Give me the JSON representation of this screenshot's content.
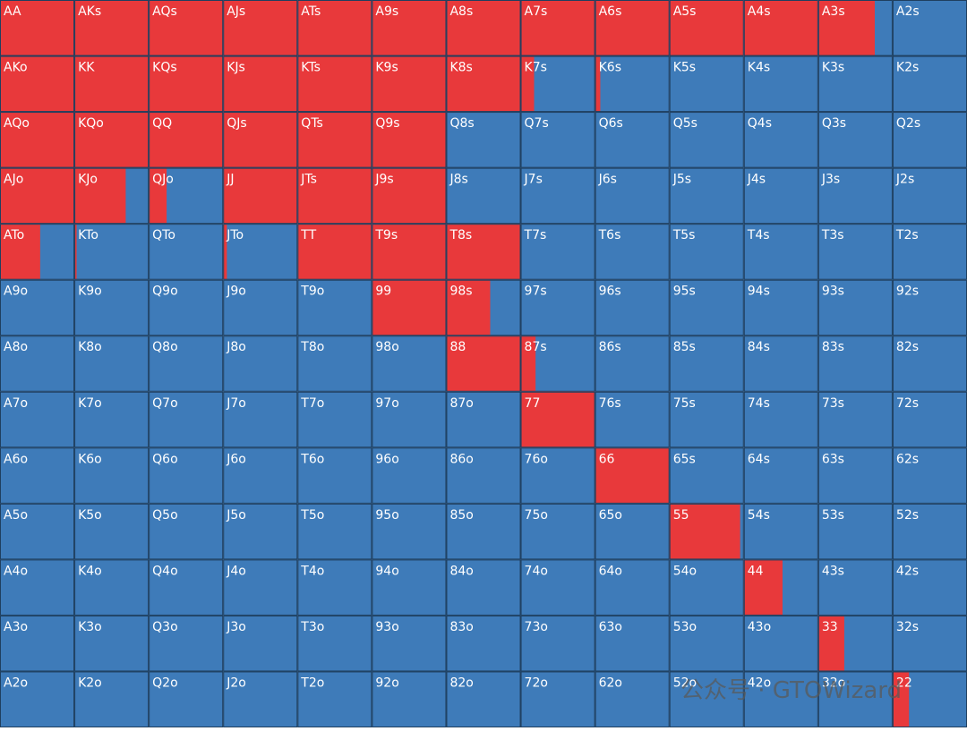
{
  "labels": [
    [
      "AA",
      "AKs",
      "AQs",
      "AJs",
      "ATs",
      "A9s",
      "A8s",
      "A7s",
      "A6s",
      "A5s",
      "A4s",
      "A3s",
      "A2s"
    ],
    [
      "AKo",
      "KK",
      "KQs",
      "KJs",
      "KTs",
      "K9s",
      "K8s",
      "K7s",
      "K6s",
      "K5s",
      "K4s",
      "K3s",
      "K2s"
    ],
    [
      "AQo",
      "KQo",
      "QQ",
      "QJs",
      "QTs",
      "Q9s",
      "Q8s",
      "Q7s",
      "Q6s",
      "Q5s",
      "Q4s",
      "Q3s",
      "Q2s"
    ],
    [
      "AJo",
      "KJo",
      "QJo",
      "JJ",
      "JTs",
      "J9s",
      "J8s",
      "J7s",
      "J6s",
      "J5s",
      "J4s",
      "J3s",
      "J2s"
    ],
    [
      "ATo",
      "KTo",
      "QTo",
      "JTo",
      "TT",
      "T9s",
      "T8s",
      "T7s",
      "T6s",
      "T5s",
      "T4s",
      "T3s",
      "T2s"
    ],
    [
      "A9o",
      "K9o",
      "Q9o",
      "J9o",
      "T9o",
      "99",
      "98s",
      "97s",
      "96s",
      "95s",
      "94s",
      "93s",
      "92s"
    ],
    [
      "A8o",
      "K8o",
      "Q8o",
      "J8o",
      "T8o",
      "98o",
      "88",
      "87s",
      "86s",
      "85s",
      "84s",
      "83s",
      "82s"
    ],
    [
      "A7o",
      "K7o",
      "Q7o",
      "J7o",
      "T7o",
      "97o",
      "87o",
      "77",
      "76s",
      "75s",
      "74s",
      "73s",
      "72s"
    ],
    [
      "A6o",
      "K6o",
      "Q6o",
      "J6o",
      "T6o",
      "96o",
      "86o",
      "76o",
      "66",
      "65s",
      "64s",
      "63s",
      "62s"
    ],
    [
      "A5o",
      "K5o",
      "Q5o",
      "J5o",
      "T5o",
      "95o",
      "85o",
      "75o",
      "65o",
      "55",
      "54s",
      "53s",
      "52s"
    ],
    [
      "A4o",
      "K4o",
      "Q4o",
      "J4o",
      "T4o",
      "94o",
      "84o",
      "74o",
      "64o",
      "54o",
      "44",
      "43s",
      "42s"
    ],
    [
      "A3o",
      "K3o",
      "Q3o",
      "J3o",
      "T3o",
      "93o",
      "83o",
      "73o",
      "63o",
      "53o",
      "43o",
      "33",
      "32s"
    ],
    [
      "A2o",
      "K2o",
      "Q2o",
      "J2o",
      "T2o",
      "92o",
      "82o",
      "72o",
      "62o",
      "52o",
      "42o",
      "32o",
      "22"
    ]
  ],
  "raise": [
    [
      100,
      100,
      100,
      100,
      100,
      100,
      100,
      100,
      100,
      100,
      100,
      76,
      0
    ],
    [
      100,
      100,
      100,
      100,
      100,
      100,
      100,
      18,
      7,
      0,
      0,
      0,
      0
    ],
    [
      100,
      100,
      100,
      100,
      100,
      100,
      0,
      0,
      0,
      0,
      0,
      0,
      0
    ],
    [
      100,
      69,
      24,
      100,
      100,
      100,
      0,
      0,
      0,
      0,
      0,
      0,
      0
    ],
    [
      54,
      3,
      0,
      5,
      100,
      100,
      100,
      0,
      0,
      0,
      0,
      0,
      0
    ],
    [
      0,
      0,
      0,
      0,
      0,
      100,
      59,
      0,
      0,
      0,
      0,
      0,
      0
    ],
    [
      0,
      0,
      0,
      0,
      0,
      0,
      100,
      20,
      0,
      0,
      0,
      0,
      0
    ],
    [
      0,
      0,
      0,
      0,
      0,
      0,
      0,
      100,
      0,
      0,
      0,
      0,
      0
    ],
    [
      0,
      0,
      0,
      0,
      0,
      0,
      0,
      0,
      100,
      0,
      0,
      0,
      0
    ],
    [
      0,
      0,
      0,
      0,
      0,
      0,
      0,
      0,
      0,
      95,
      0,
      0,
      0
    ],
    [
      0,
      0,
      0,
      0,
      0,
      0,
      0,
      0,
      0,
      0,
      52,
      0,
      0
    ],
    [
      0,
      0,
      0,
      0,
      0,
      0,
      0,
      0,
      0,
      0,
      0,
      35,
      0
    ],
    [
      0,
      0,
      0,
      0,
      0,
      0,
      0,
      0,
      0,
      0,
      0,
      0,
      22
    ]
  ],
  "raise_color": "#e8393b",
  "other_color": "#3e7bb9",
  "watermark": "公众号 · GTOWizard"
}
